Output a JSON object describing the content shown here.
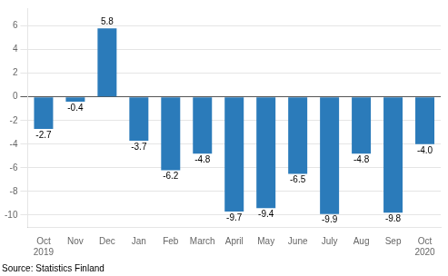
{
  "chart_data": {
    "type": "bar",
    "categories": [
      "Oct\n2019",
      "Nov",
      "Dec",
      "Jan",
      "Feb",
      "March",
      "April",
      "May",
      "June",
      "July",
      "Aug",
      "Sep",
      "Oct\n2020"
    ],
    "values": [
      -2.7,
      -0.4,
      5.8,
      -3.7,
      -6.2,
      -4.8,
      -9.7,
      -9.4,
      -6.5,
      -9.9,
      -4.8,
      -9.8,
      -4.0
    ],
    "value_labels": [
      "-2.7",
      "-0.4",
      "5.8",
      "-3.7",
      "-6.2",
      "-4.8",
      "-9.7",
      "-9.4",
      "-6.5",
      "-9.9",
      "-4.8",
      "-9.8",
      "-4.0"
    ],
    "color": "#2b7bba",
    "ylim": [
      -11,
      7.5
    ],
    "yticks": [
      -10,
      -8,
      -6,
      -4,
      -2,
      0,
      2,
      4,
      6
    ],
    "grid": true,
    "data_labels": true,
    "annotation": "Source: Statistics Finland"
  }
}
